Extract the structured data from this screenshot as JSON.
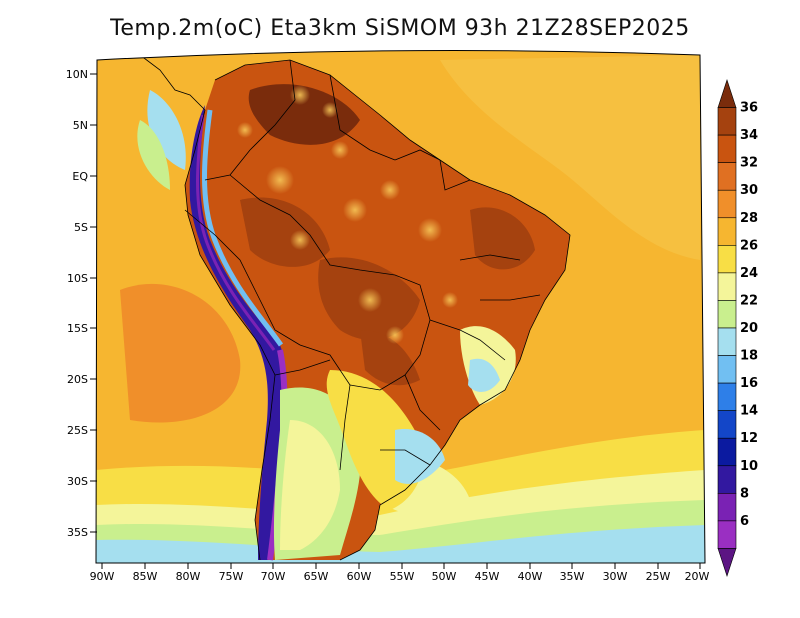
{
  "title": "Temp.2m(oC) Eta3km SiSMOM 93h 21Z28SEP2025",
  "lat_labels": [
    "10N",
    "5N",
    "EQ",
    "5S",
    "10S",
    "15S",
    "20S",
    "25S",
    "30S",
    "35S"
  ],
  "lon_labels": [
    "90W",
    "85W",
    "80W",
    "75W",
    "70W",
    "65W",
    "60W",
    "55W",
    "50W",
    "45W",
    "40W",
    "35W",
    "30W",
    "25W",
    "20W"
  ],
  "colorbar": {
    "labels": [
      "36",
      "34",
      "32",
      "30",
      "28",
      "26",
      "24",
      "22",
      "20",
      "18",
      "16",
      "14",
      "12",
      "10",
      "8",
      "6"
    ],
    "colors": [
      "#7a2c0c",
      "#a5420f",
      "#c95410",
      "#e07022",
      "#f08f2a",
      "#f6b630",
      "#f8de45",
      "#f4f59a",
      "#c9ef8e",
      "#a5dfef",
      "#71bff2",
      "#2e7fe8",
      "#1346c8",
      "#0b1aa0",
      "#3218a0",
      "#7a22b4",
      "#9a2fc2",
      "#5c1583"
    ]
  }
}
